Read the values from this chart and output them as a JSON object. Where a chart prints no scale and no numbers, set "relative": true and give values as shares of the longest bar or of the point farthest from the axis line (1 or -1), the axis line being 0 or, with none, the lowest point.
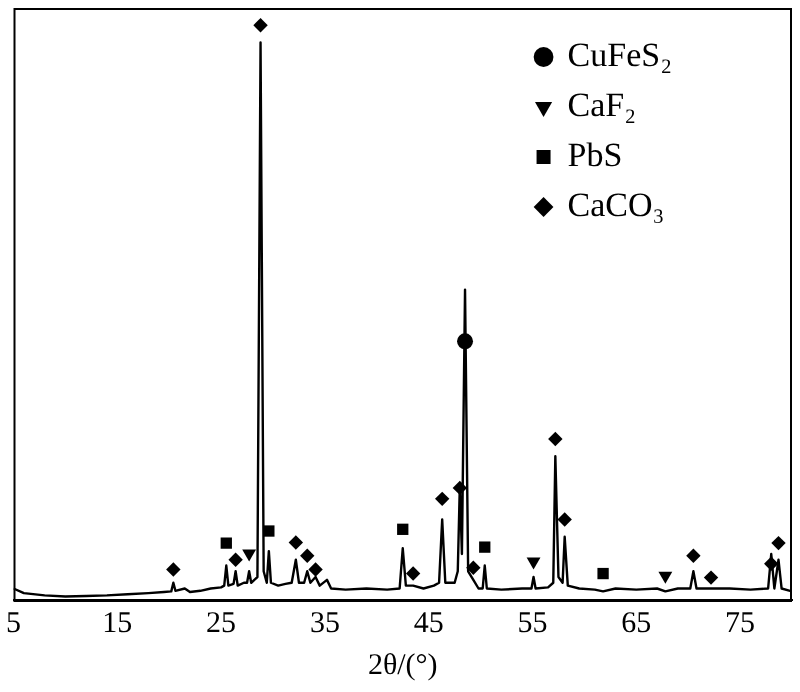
{
  "chart_data": {
    "type": "line",
    "xlabel": "2θ/(°)",
    "relative": true,
    "xlim": [
      5,
      80
    ],
    "xticks": [
      5,
      15,
      25,
      35,
      45,
      55,
      65,
      75
    ],
    "legend": "top right",
    "grid": false,
    "series": [
      {
        "color": "#000000",
        "marker": "none",
        "x": [
          5,
          6,
          8,
          10,
          12,
          14,
          16,
          18,
          19.5,
          20.2,
          20.4,
          20.6,
          21.5,
          22,
          23,
          24,
          25,
          25.3,
          25.5,
          25.7,
          26.2,
          26.4,
          26.6,
          27.2,
          27.5,
          27.7,
          27.9,
          28.5,
          28.8,
          29.1,
          29.4,
          29.6,
          29.8,
          30.5,
          31.2,
          31.8,
          32.2,
          32.5,
          33,
          33.3,
          33.6,
          34.1,
          34.5,
          35.2,
          35.6,
          37,
          39,
          41,
          42.2,
          42.5,
          42.8,
          43.5,
          44.5,
          45.5,
          46,
          46.3,
          46.6,
          47.5,
          47.8,
          48,
          48.2,
          48.5,
          48.8,
          49.3,
          49.8,
          50.2,
          50.4,
          50.6,
          52,
          54,
          54.9,
          55.1,
          55.3,
          56.5,
          57,
          57.2,
          57.5,
          57.9,
          58.1,
          58.4,
          59.5,
          61,
          61.8,
          63,
          65,
          67,
          67.8,
          69,
          70.2,
          70.5,
          70.8,
          72.2,
          74,
          76,
          77.7,
          78,
          78.3,
          78.7,
          79,
          80
        ],
        "values": [
          0.02,
          0.012,
          0.008,
          0.006,
          0.007,
          0.008,
          0.01,
          0.012,
          0.014,
          0.015,
          0.03,
          0.016,
          0.02,
          0.014,
          0.016,
          0.02,
          0.022,
          0.025,
          0.06,
          0.025,
          0.028,
          0.05,
          0.025,
          0.03,
          0.03,
          0.05,
          0.03,
          0.04,
          0.97,
          0.05,
          0.03,
          0.085,
          0.03,
          0.025,
          0.028,
          0.03,
          0.07,
          0.03,
          0.03,
          0.05,
          0.03,
          0.04,
          0.025,
          0.035,
          0.02,
          0.018,
          0.02,
          0.018,
          0.02,
          0.09,
          0.025,
          0.025,
          0.02,
          0.025,
          0.03,
          0.14,
          0.03,
          0.03,
          0.05,
          0.2,
          0.08,
          0.54,
          0.05,
          0.035,
          0.02,
          0.02,
          0.06,
          0.02,
          0.018,
          0.02,
          0.02,
          0.04,
          0.02,
          0.022,
          0.03,
          0.25,
          0.04,
          0.03,
          0.11,
          0.025,
          0.02,
          0.018,
          0.015,
          0.02,
          0.018,
          0.02,
          0.015,
          0.02,
          0.02,
          0.05,
          0.02,
          0.02,
          0.02,
          0.018,
          0.02,
          0.08,
          0.02,
          0.07,
          0.02,
          0.015
        ]
      },
      {
        "name": "CuFeS₂",
        "type": "scatter",
        "marker": "circle",
        "color": "#000000",
        "x": [
          48.5
        ],
        "values": [
          0.45
        ]
      },
      {
        "name": "CaF₂",
        "type": "scatter",
        "marker": "triangle",
        "color": "#000000",
        "x": [
          27.7,
          55.1,
          67.8
        ],
        "values": [
          0.081,
          0.067,
          0.042
        ]
      },
      {
        "name": "PbS",
        "type": "scatter",
        "marker": "square",
        "color": "#000000",
        "x": [
          25.5,
          29.6,
          42.5,
          50.4,
          61.8
        ],
        "values": [
          0.099,
          0.12,
          0.123,
          0.092,
          0.046
        ]
      },
      {
        "name": "CaCO₃",
        "type": "scatter",
        "marker": "diamond",
        "color": "#000000",
        "x": [
          20.4,
          26.4,
          28.8,
          32.2,
          33.3,
          34.1,
          43.5,
          46.3,
          48,
          49.3,
          57.2,
          58.1,
          70.5,
          72.2,
          78,
          78.7
        ],
        "values": [
          0.053,
          0.07,
          1,
          0.1,
          0.077,
          0.053,
          0.046,
          0.176,
          0.195,
          0.056,
          0.28,
          0.14,
          0.077,
          0.039,
          0.063,
          0.099
        ]
      }
    ]
  }
}
